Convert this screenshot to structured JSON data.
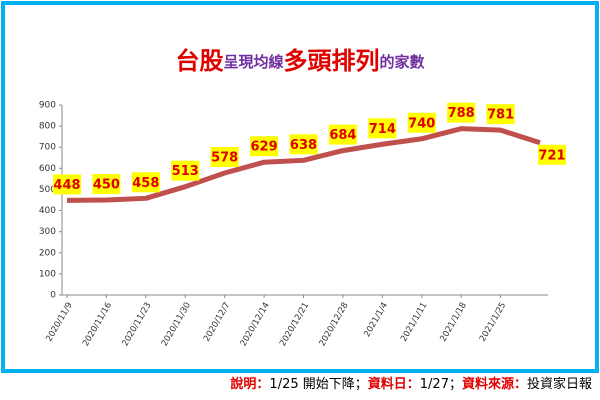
{
  "chart_data": {
    "type": "line",
    "title_parts": [
      "台股",
      "呈現均線",
      "多頭排列",
      "的家數"
    ],
    "categories": [
      "2020/11/9",
      "2020/11/16",
      "2020/11/23",
      "2020/11/30",
      "2020/12/7",
      "2020/12/14",
      "2020/12/21",
      "2020/12/28",
      "2021/1/4",
      "2021/1/11",
      "2021/1/18",
      "2021/1/25",
      null
    ],
    "series": [
      {
        "name": null,
        "color": "#c0504d",
        "values": [
          448,
          450,
          458,
          513,
          578,
          629,
          638,
          684,
          714,
          740,
          788,
          781,
          721
        ]
      }
    ],
    "ylim": [
      0,
      900
    ],
    "yticks": [
      0,
      100,
      200,
      300,
      400,
      500,
      600,
      700,
      800,
      900
    ],
    "grid": false,
    "note_parts": [
      "說明：",
      "1/25 開始下降；",
      "資料日：",
      "1/27；",
      "資料來源：",
      "投資家日報"
    ]
  }
}
